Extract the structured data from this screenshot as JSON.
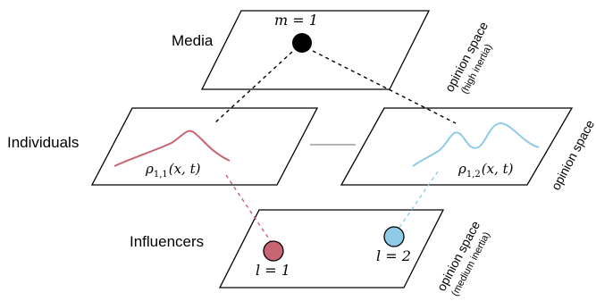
{
  "layers": {
    "media": "Media",
    "individuals": "Individuals",
    "influencers": "Influencers"
  },
  "space_labels": {
    "media": "opinion space",
    "media_note": "(high inertia)",
    "individuals": "opinion space",
    "influencers": "opinion space",
    "influencers_note": "(medium inertia)"
  },
  "nodes": {
    "media": "m = 1",
    "influencer_1": "l = 1",
    "influencer_2": "l = 2"
  },
  "densities": {
    "group_1": {
      "rho": "ρ",
      "sub": "1,1",
      "args": "(x, t)"
    },
    "group_2": {
      "rho": "ρ",
      "sub": "1,2",
      "args": "(x, t)"
    }
  },
  "colors": {
    "group_1": "#c96473",
    "group_2": "#8ecbe6",
    "media": "#000000",
    "link": "#888888"
  }
}
